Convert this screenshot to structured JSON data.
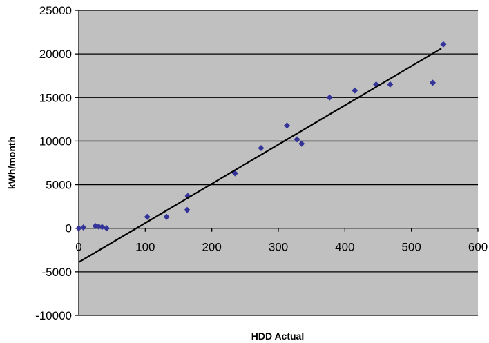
{
  "colors": {
    "plot_background": "#c0c0c0",
    "point": "#333399",
    "trendline": "#000000",
    "gridline": "#000000"
  },
  "chart_data": {
    "type": "scatter",
    "xlabel": "HDD Actual",
    "ylabel": "kWh/month",
    "xlim": [
      0,
      600
    ],
    "ylim": [
      -10000,
      25000
    ],
    "x_ticks": [
      0,
      100,
      200,
      300,
      400,
      500,
      600
    ],
    "y_ticks": [
      -10000,
      -5000,
      0,
      5000,
      10000,
      15000,
      20000,
      25000
    ],
    "x_tick_labels": [
      "0",
      "100",
      "200",
      "300",
      "400",
      "500",
      "600"
    ],
    "y_tick_labels": [
      "-10000",
      "-5000",
      "0",
      "5000",
      "10000",
      "15000",
      "20000",
      "25000"
    ],
    "grid": "horizontal major gridlines",
    "legend": "none",
    "marker": "diamond",
    "series": [
      {
        "points": [
          {
            "x": 0,
            "y": 0
          },
          {
            "x": 7,
            "y": 100
          },
          {
            "x": 25,
            "y": 250
          },
          {
            "x": 30,
            "y": 200
          },
          {
            "x": 35,
            "y": 150
          },
          {
            "x": 42,
            "y": 0
          },
          {
            "x": 103,
            "y": 1300
          },
          {
            "x": 132,
            "y": 1300
          },
          {
            "x": 163,
            "y": 2100
          },
          {
            "x": 164,
            "y": 3700
          },
          {
            "x": 235,
            "y": 6300
          },
          {
            "x": 274,
            "y": 9200
          },
          {
            "x": 313,
            "y": 11800
          },
          {
            "x": 328,
            "y": 10200
          },
          {
            "x": 335,
            "y": 9700
          },
          {
            "x": 377,
            "y": 15000
          },
          {
            "x": 415,
            "y": 15800
          },
          {
            "x": 447,
            "y": 16500
          },
          {
            "x": 468,
            "y": 16500
          },
          {
            "x": 532,
            "y": 16700
          },
          {
            "x": 548,
            "y": 21100
          }
        ]
      }
    ],
    "trendline": {
      "type": "linear",
      "x_range": [
        0,
        545
      ],
      "slope": 45,
      "intercept": -3900
    }
  }
}
